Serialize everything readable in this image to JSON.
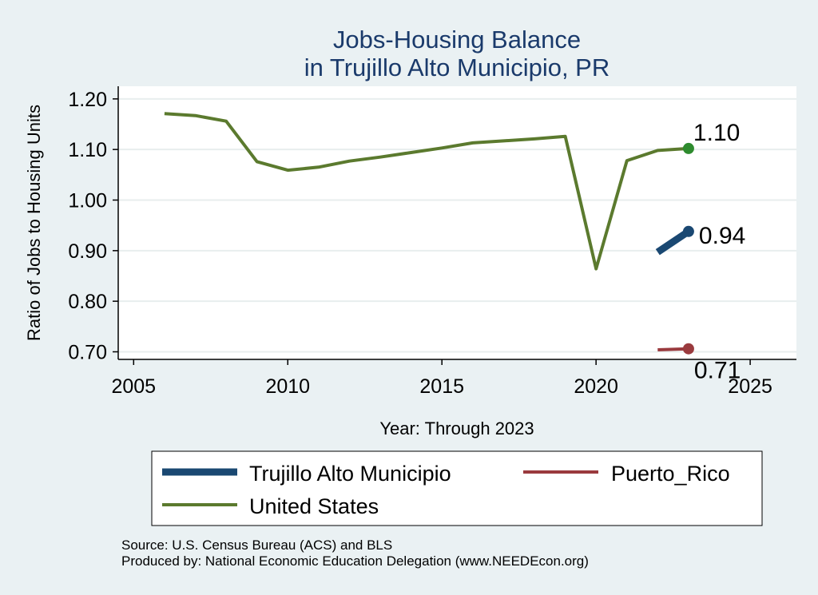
{
  "chart_data": {
    "type": "line",
    "title": [
      "Jobs-Housing Balance",
      "in Trujillo Alto Municipio, PR"
    ],
    "xlabel": "Year: Through 2023",
    "ylabel": "Ratio of Jobs to Housing Units",
    "xlim": [
      2004.5,
      2026.5
    ],
    "ylim": [
      0.685,
      1.225
    ],
    "x_ticks": [
      2005,
      2010,
      2015,
      2020,
      2025
    ],
    "y_ticks": [
      0.7,
      0.8,
      0.9,
      1.0,
      1.1,
      1.2
    ],
    "y_tick_labels": [
      "0.70",
      "0.80",
      "0.90",
      "1.00",
      "1.10",
      "1.20"
    ],
    "grid": true,
    "series": [
      {
        "key": "trujillo",
        "name": "Trujillo Alto Municipio",
        "color": "#1a4872",
        "x": [
          2022,
          2023
        ],
        "values": [
          0.897,
          0.938
        ],
        "end_label": "0.94"
      },
      {
        "key": "pr",
        "name": "Puerto_Rico",
        "color": "#9a3a3e",
        "x": [
          2022,
          2023
        ],
        "values": [
          0.704,
          0.706
        ],
        "end_label": "0.71"
      },
      {
        "key": "us",
        "name": "United States",
        "color": "#5b7a2e",
        "end_color": "#2e8b2e",
        "x": [
          2006,
          2007,
          2008,
          2009,
          2010,
          2011,
          2012,
          2013,
          2014,
          2015,
          2016,
          2017,
          2018,
          2019,
          2020,
          2021,
          2022,
          2023
        ],
        "values": [
          1.171,
          1.167,
          1.156,
          1.076,
          1.059,
          1.065,
          1.077,
          1.085,
          1.094,
          1.103,
          1.113,
          1.117,
          1.121,
          1.126,
          0.864,
          1.078,
          1.098,
          1.102
        ],
        "end_label": "1.10"
      }
    ],
    "legend": {
      "placement": "bottom",
      "entries": [
        "Trujillo Alto Municipio",
        "Puerto_Rico",
        "United States"
      ]
    }
  },
  "source_note": "Source: U.S. Census Bureau (ACS) and BLS",
  "producer_note": "Produced by: National Economic Education Delegation (www.NEEDEcon.org)"
}
